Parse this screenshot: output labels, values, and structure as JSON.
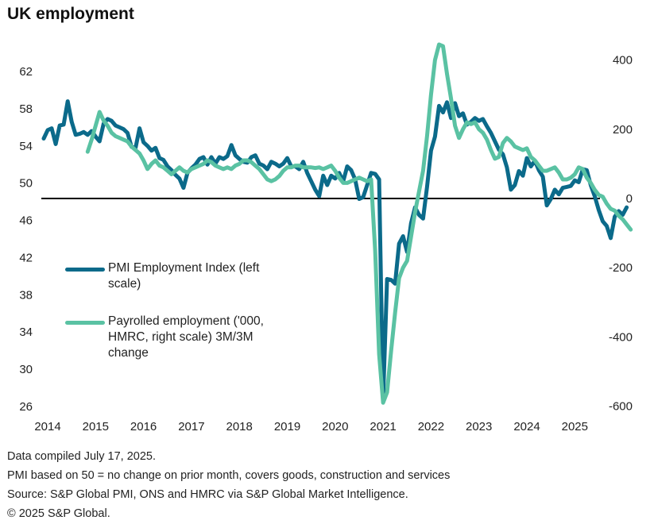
{
  "chart_data": {
    "type": "line",
    "title": "UK employment",
    "xlabel": "",
    "x_ticks": [
      "2014",
      "2015",
      "2016",
      "2017",
      "2018",
      "2019",
      "2020",
      "2021",
      "2022",
      "2023",
      "2024",
      "2025"
    ],
    "x_range": [
      "2014-01",
      "2025-06"
    ],
    "left_axis": {
      "label": "PMI Employment Index",
      "ylim": [
        26,
        64
      ],
      "ticks": [
        26,
        30,
        34,
        38,
        42,
        46,
        50,
        54,
        58,
        62
      ]
    },
    "right_axis": {
      "label": "Payrolled employment ('000)",
      "ylim": [
        -600,
        450
      ],
      "ticks": [
        -600,
        -400,
        -200,
        0,
        200,
        400
      ]
    },
    "reference_line": {
      "axis": "right",
      "value": 0,
      "color": "#000000"
    },
    "legend_position": "left-middle",
    "series": [
      {
        "name": "PMI Employment Index (left scale)",
        "axis": "left",
        "color": "#0b6a8a",
        "start": "2014-01",
        "values": [
          54.8,
          55.7,
          55.9,
          54.2,
          56.2,
          56.3,
          58.8,
          56.6,
          55.2,
          55.3,
          55.5,
          55.2,
          55.6,
          55.0,
          54.5,
          56.4,
          56.9,
          56.7,
          56.2,
          56.0,
          55.8,
          55.4,
          53.9,
          53.8,
          55.9,
          54.4,
          54.0,
          53.5,
          53.8,
          52.7,
          52.5,
          51.8,
          51.4,
          50.9,
          50.5,
          49.5,
          51.1,
          51.6,
          52.0,
          52.6,
          52.8,
          52.0,
          52.8,
          52.1,
          52.8,
          52.6,
          52.9,
          54.1,
          53.0,
          52.6,
          52.3,
          52.2,
          52.8,
          53.0,
          52.1,
          51.9,
          51.5,
          52.3,
          52.1,
          51.8,
          52.1,
          52.7,
          51.8,
          51.8,
          51.5,
          52.3,
          51.1,
          50.2,
          49.3,
          48.6,
          50.8,
          49.8,
          50.8,
          50.5,
          51.1,
          50.2,
          51.8,
          51.4,
          50.4,
          48.3,
          48.5,
          49.8,
          51.1,
          51.0,
          50.4,
          26.7,
          39.7,
          39.6,
          39.2,
          43.5,
          44.3,
          42.6,
          45.7,
          47.4,
          46.6,
          46.2,
          49.6,
          53.5,
          55.0,
          58.3,
          57.6,
          58.7,
          57.0,
          58.6,
          57.2,
          57.5,
          56.3,
          56.6,
          57.0,
          56.7,
          56.9,
          56.1,
          55.4,
          54.5,
          53.6,
          53.1,
          51.7,
          49.3,
          49.8,
          51.3,
          50.8,
          52.7,
          51.8,
          52.4,
          51.4,
          50.7,
          47.6,
          48.3,
          49.3,
          48.8,
          49.5,
          49.6,
          49.7,
          50.3,
          50.1,
          51.5,
          51.4,
          49.8,
          48.6,
          47.1,
          45.9,
          45.4,
          44.1,
          46.4,
          47.0,
          46.6,
          47.4
        ]
      },
      {
        "name": "Payrolled employment ('000, HMRC, right scale) 3M/3M change",
        "axis": "right",
        "color": "#5ac2a3",
        "start": "2014-12",
        "values": [
          135,
          170,
          210,
          250,
          225,
          210,
          190,
          180,
          175,
          170,
          165,
          150,
          140,
          130,
          110,
          85,
          100,
          110,
          95,
          90,
          80,
          70,
          80,
          90,
          80,
          75,
          85,
          90,
          95,
          100,
          110,
          105,
          95,
          90,
          85,
          90,
          85,
          95,
          100,
          110,
          110,
          105,
          95,
          85,
          70,
          55,
          50,
          55,
          65,
          80,
          90,
          90,
          95,
          95,
          90,
          90,
          90,
          88,
          90,
          85,
          90,
          95,
          80,
          60,
          45,
          45,
          50,
          55,
          60,
          55,
          50,
          55,
          -150,
          -450,
          -590,
          -560,
          -440,
          -330,
          -230,
          -200,
          -180,
          -110,
          -40,
          20,
          80,
          180,
          300,
          400,
          445,
          440,
          360,
          290,
          210,
          175,
          200,
          220,
          215,
          220,
          200,
          190,
          170,
          140,
          115,
          120,
          160,
          175,
          165,
          150,
          145,
          140,
          145,
          120,
          110,
          95,
          80,
          80,
          85,
          90,
          75,
          55,
          55,
          60,
          70,
          90,
          85,
          60,
          45,
          25,
          10,
          5,
          -15,
          -30,
          -35,
          -50,
          -60,
          -75,
          -90
        ]
      }
    ],
    "legend": [
      {
        "label": "PMI Employment Index (left scale)",
        "color": "#0b6a8a"
      },
      {
        "label": "Payrolled employment ('000, HMRC, right scale) 3M/3M change",
        "color": "#5ac2a3"
      }
    ]
  },
  "header": {
    "title": "UK employment"
  },
  "footer": {
    "lines": [
      "Data compiled July 17, 2025.",
      "PMI based on 50 = no change on prior month, covers goods, construction and services",
      "Source: S&P Global PMI, ONS and HMRC via S&P Global Market Intelligence.",
      "© 2025 S&P Global."
    ]
  },
  "legend_text": {
    "pmi_line1": "PMI Employment Index (left",
    "pmi_line2": "scale)",
    "pay_line1": "Payrolled employment ('000,",
    "pay_line2": "HMRC, right scale) 3M/3M",
    "pay_line3": "change"
  }
}
